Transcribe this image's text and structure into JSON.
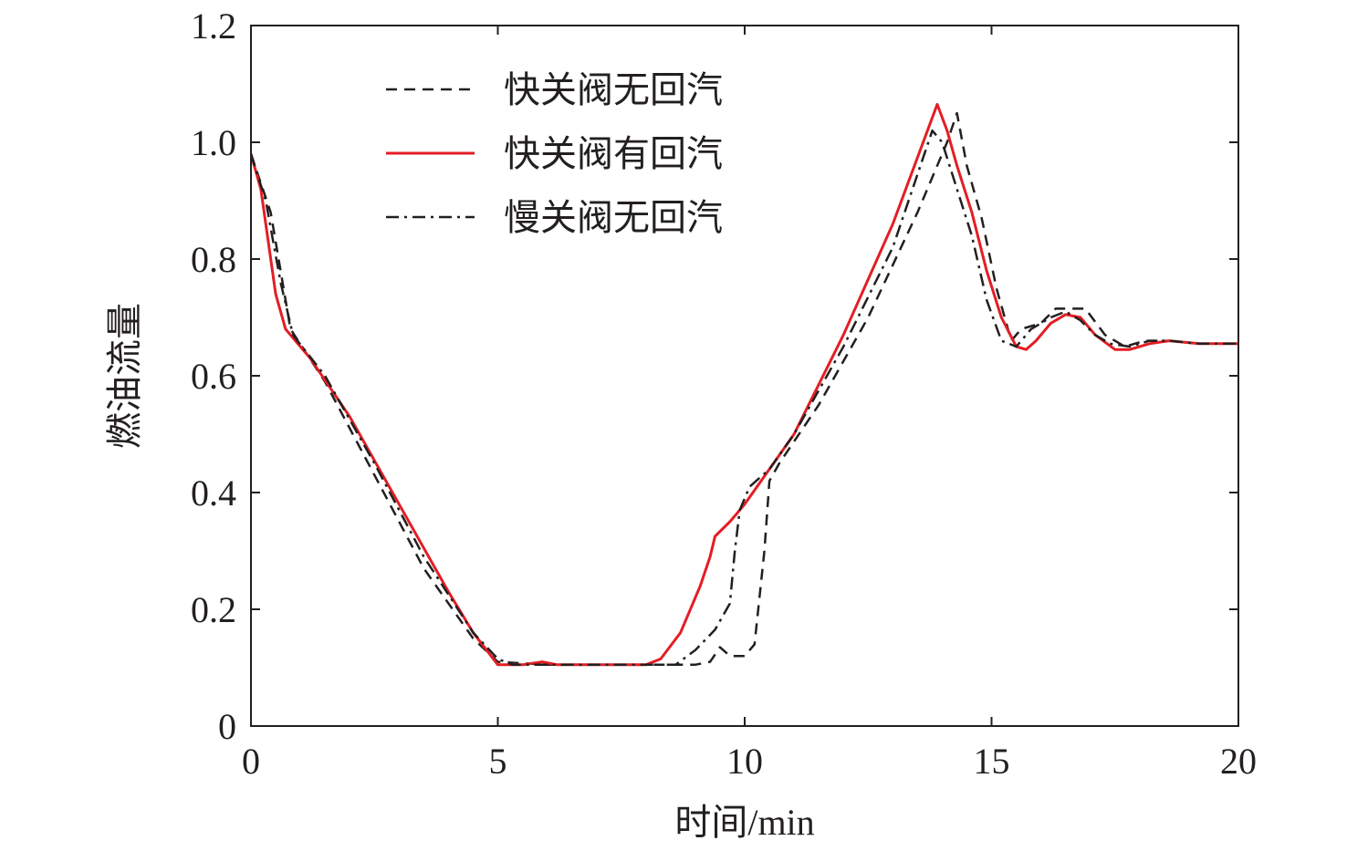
{
  "chart_data": {
    "type": "line",
    "title": "",
    "xlabel": "时间/min",
    "ylabel": "燃油流量",
    "xlim": [
      0,
      20
    ],
    "ylim": [
      0,
      1.2
    ],
    "x_ticks": [
      0,
      5,
      10,
      15,
      20
    ],
    "x_tick_labels": [
      "0",
      "5",
      "10",
      "15",
      "20"
    ],
    "y_ticks": [
      0,
      0.2,
      0.4,
      0.6,
      0.8,
      1.0,
      1.2
    ],
    "y_tick_labels": [
      "0",
      "0.2",
      "0.4",
      "0.6",
      "0.8",
      "1.0",
      "1.2"
    ],
    "grid": false,
    "legend_position": "top-left",
    "series": [
      {
        "name": "快关阀无回汽",
        "color": "#231f20",
        "style": "dashed",
        "points": [
          [
            0,
            0.98
          ],
          [
            0.4,
            0.88
          ],
          [
            0.8,
            0.68
          ],
          [
            1.5,
            0.59
          ],
          [
            2.5,
            0.43
          ],
          [
            3.5,
            0.27
          ],
          [
            4.5,
            0.15
          ],
          [
            5.0,
            0.11
          ],
          [
            6.0,
            0.105
          ],
          [
            7.0,
            0.105
          ],
          [
            8.0,
            0.105
          ],
          [
            9.0,
            0.105
          ],
          [
            9.3,
            0.11
          ],
          [
            9.5,
            0.135
          ],
          [
            9.7,
            0.12
          ],
          [
            10.0,
            0.12
          ],
          [
            10.2,
            0.14
          ],
          [
            10.4,
            0.3
          ],
          [
            10.5,
            0.42
          ],
          [
            10.7,
            0.45
          ],
          [
            11.5,
            0.55
          ],
          [
            12.5,
            0.7
          ],
          [
            13.5,
            0.88
          ],
          [
            14.1,
            1.0
          ],
          [
            14.3,
            1.05
          ],
          [
            14.5,
            0.96
          ],
          [
            14.8,
            0.87
          ],
          [
            15.1,
            0.75
          ],
          [
            15.4,
            0.66
          ],
          [
            15.6,
            0.68
          ],
          [
            16.0,
            0.69
          ],
          [
            16.3,
            0.715
          ],
          [
            16.6,
            0.715
          ],
          [
            16.9,
            0.715
          ],
          [
            17.3,
            0.67
          ],
          [
            17.7,
            0.65
          ],
          [
            18.1,
            0.66
          ],
          [
            18.6,
            0.66
          ],
          [
            19.2,
            0.655
          ],
          [
            20,
            0.655
          ]
        ]
      },
      {
        "name": "快关阀有回汽",
        "color": "#e31e24",
        "style": "solid",
        "points": [
          [
            0,
            0.98
          ],
          [
            0.2,
            0.92
          ],
          [
            0.5,
            0.74
          ],
          [
            0.7,
            0.68
          ],
          [
            1.2,
            0.63
          ],
          [
            2.0,
            0.53
          ],
          [
            3.0,
            0.38
          ],
          [
            4.0,
            0.23
          ],
          [
            4.5,
            0.16
          ],
          [
            5.0,
            0.105
          ],
          [
            5.5,
            0.105
          ],
          [
            5.9,
            0.11
          ],
          [
            6.2,
            0.105
          ],
          [
            7.0,
            0.105
          ],
          [
            8.0,
            0.105
          ],
          [
            8.3,
            0.115
          ],
          [
            8.7,
            0.16
          ],
          [
            9.1,
            0.24
          ],
          [
            9.3,
            0.29
          ],
          [
            9.4,
            0.325
          ],
          [
            9.7,
            0.35
          ],
          [
            10.0,
            0.38
          ],
          [
            10.5,
            0.44
          ],
          [
            11.0,
            0.5
          ],
          [
            12.0,
            0.67
          ],
          [
            13.0,
            0.86
          ],
          [
            13.9,
            1.065
          ],
          [
            14.1,
            1.02
          ],
          [
            14.3,
            0.96
          ],
          [
            14.6,
            0.88
          ],
          [
            14.9,
            0.78
          ],
          [
            15.2,
            0.7
          ],
          [
            15.5,
            0.65
          ],
          [
            15.7,
            0.645
          ],
          [
            15.9,
            0.66
          ],
          [
            16.2,
            0.69
          ],
          [
            16.5,
            0.705
          ],
          [
            16.8,
            0.7
          ],
          [
            17.1,
            0.67
          ],
          [
            17.5,
            0.645
          ],
          [
            17.8,
            0.645
          ],
          [
            18.2,
            0.655
          ],
          [
            18.6,
            0.66
          ],
          [
            19.2,
            0.655
          ],
          [
            20,
            0.655
          ]
        ]
      },
      {
        "name": "慢关阀无回汽",
        "color": "#231f20",
        "style": "dashdot",
        "points": [
          [
            0,
            0.98
          ],
          [
            0.3,
            0.9
          ],
          [
            0.6,
            0.76
          ],
          [
            0.85,
            0.67
          ],
          [
            1.5,
            0.6
          ],
          [
            2.5,
            0.45
          ],
          [
            3.5,
            0.29
          ],
          [
            4.5,
            0.16
          ],
          [
            5.0,
            0.115
          ],
          [
            5.3,
            0.105
          ],
          [
            6.0,
            0.105
          ],
          [
            7.0,
            0.105
          ],
          [
            8.0,
            0.105
          ],
          [
            8.6,
            0.105
          ],
          [
            9.0,
            0.13
          ],
          [
            9.4,
            0.165
          ],
          [
            9.7,
            0.21
          ],
          [
            9.8,
            0.3
          ],
          [
            9.9,
            0.37
          ],
          [
            10.1,
            0.41
          ],
          [
            10.5,
            0.44
          ],
          [
            11.0,
            0.5
          ],
          [
            12.0,
            0.65
          ],
          [
            13.0,
            0.82
          ],
          [
            13.8,
            1.02
          ],
          [
            14.0,
            1.0
          ],
          [
            14.3,
            0.92
          ],
          [
            14.6,
            0.84
          ],
          [
            14.9,
            0.73
          ],
          [
            15.2,
            0.66
          ],
          [
            15.5,
            0.65
          ],
          [
            15.8,
            0.68
          ],
          [
            16.2,
            0.7
          ],
          [
            16.5,
            0.71
          ],
          [
            16.8,
            0.695
          ],
          [
            17.1,
            0.67
          ],
          [
            17.4,
            0.655
          ],
          [
            17.8,
            0.65
          ],
          [
            18.2,
            0.66
          ],
          [
            18.6,
            0.66
          ],
          [
            19.2,
            0.655
          ],
          [
            20,
            0.655
          ]
        ]
      }
    ]
  }
}
